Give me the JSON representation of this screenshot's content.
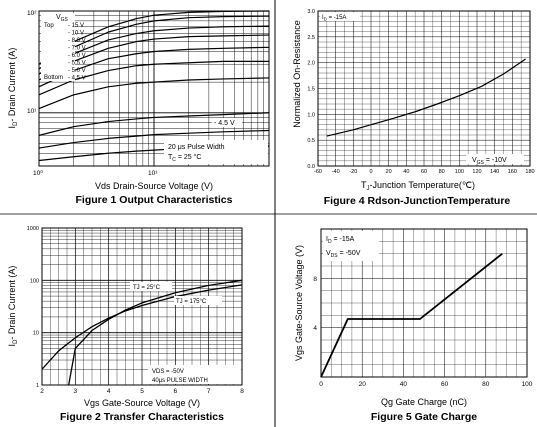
{
  "chart_data": [
    {
      "type": "line",
      "title": "Figure 1 Output Characteristics",
      "xlabel": "Vds Drain-Source Voltage (V)",
      "ylabel": "ID- Drain Current (A)",
      "xscale": "log",
      "yscale": "log",
      "xlim": [
        1,
        100
      ],
      "ylim": [
        3,
        100
      ],
      "grid": true,
      "xticks": [
        "10⁰",
        "10¹"
      ],
      "yticks": [
        "10²",
        "10¹"
      ],
      "legend": {
        "header": "VGS",
        "top_label": "Top",
        "bottom_label": "Bottom",
        "entries": [
          "- 15 V",
          "- 10 V",
          "- 8.0 V",
          "- 7.0 V",
          "- 6.0 V",
          "- 5.5 V",
          "- 5.0 V",
          "- 4.5 V"
        ]
      },
      "annotations": [
        "- 4.5 V",
        "20 μs Pulse Width",
        "TC = 25 °C"
      ],
      "series": [
        {
          "name": "-15 V",
          "x": [
            1,
            2,
            4,
            7,
            10,
            20,
            40,
            100
          ],
          "y": [
            30,
            50,
            70,
            84,
            91,
            97,
            99,
            100
          ]
        },
        {
          "name": "-10 V",
          "x": [
            1,
            2,
            4,
            7,
            10,
            20,
            40,
            100
          ],
          "y": [
            27,
            44,
            62,
            74,
            80,
            86,
            88,
            89
          ]
        },
        {
          "name": "-8.0 V",
          "x": [
            1,
            2,
            4,
            7,
            10,
            20,
            40,
            100
          ],
          "y": [
            24,
            38,
            52,
            60,
            64,
            68,
            70,
            71
          ]
        },
        {
          "name": "-7.0 V",
          "x": [
            1,
            2,
            4,
            7,
            10,
            20,
            40,
            100
          ],
          "y": [
            21,
            32,
            43,
            50,
            53,
            56,
            57,
            58
          ]
        },
        {
          "name": "-6.0 V",
          "x": [
            1,
            2,
            4,
            7,
            10,
            20,
            40,
            100
          ],
          "y": [
            18,
            26,
            34,
            38,
            40,
            42,
            43,
            44
          ]
        },
        {
          "name": "-5.5 V",
          "x": [
            1,
            2,
            4,
            7,
            10,
            20,
            40,
            100
          ],
          "y": [
            15,
            21,
            26,
            29,
            30,
            31,
            32,
            32
          ]
        },
        {
          "name": "-5.0 V",
          "x": [
            1,
            2,
            4,
            7,
            10,
            20,
            40,
            100
          ],
          "y": [
            11,
            15,
            18,
            19.5,
            20,
            21,
            21.5,
            22
          ]
        },
        {
          "name": "-4.5 V",
          "x": [
            1,
            2,
            4,
            7,
            10,
            20,
            40,
            100
          ],
          "y": [
            6,
            7.3,
            8.2,
            8.7,
            9,
            9.3,
            9.6,
            10
          ]
        },
        {
          "name": "",
          "x": [
            1,
            2,
            4,
            7,
            10,
            20,
            40,
            100
          ],
          "y": [
            4.5,
            5.1,
            5.6,
            5.9,
            6.1,
            6.3,
            6.5,
            6.7
          ]
        },
        {
          "name": "",
          "x": [
            1,
            2,
            4,
            7,
            10,
            20,
            40,
            100
          ],
          "y": [
            3.4,
            3.7,
            4.0,
            4.2,
            4.3,
            4.5,
            4.6,
            4.7
          ]
        }
      ]
    },
    {
      "type": "line",
      "title": "Figure 4 Rdson-JunctionTemperature",
      "xlabel": "TJ-Junction Temperature(℃)",
      "ylabel": "Normalized On-Resistance",
      "xlim": [
        -60,
        180
      ],
      "ylim": [
        0,
        3.0
      ],
      "grid": true,
      "xticks": [
        "-60",
        "-40",
        "-20",
        "0",
        "20",
        "40",
        "60",
        "80",
        "100",
        "120",
        "140",
        "160",
        "180"
      ],
      "yticks": [
        "3.0",
        "2.5",
        "2.0",
        "1.5",
        "1.0",
        "0.5",
        "0.0"
      ],
      "annotations": [
        "ID = -15A",
        "VGS = -10V"
      ],
      "series": [
        {
          "name": "",
          "x": [
            -50,
            -20,
            0,
            25,
            50,
            75,
            100,
            125,
            150,
            175
          ],
          "y": [
            0.58,
            0.7,
            0.8,
            0.92,
            1.05,
            1.2,
            1.36,
            1.54,
            1.78,
            2.07
          ]
        }
      ]
    },
    {
      "type": "line",
      "title": "Figure 2 Transfer Characteristics",
      "xlabel": "Vgs Gate-Source Voltage (V)",
      "ylabel": "ID- Drain Current (A)",
      "yscale": "log",
      "xlim": [
        2,
        8
      ],
      "ylim": [
        1,
        1000
      ],
      "grid": true,
      "xticks": [
        "2",
        "3",
        "4",
        "5",
        "6",
        "7",
        "8"
      ],
      "yticks": [
        "1000",
        "100",
        "10",
        "1"
      ],
      "annotations": [
        "TJ = 25°C",
        "TJ = 175°C",
        "VDS = -50V",
        "40μs PULSE WIDTH"
      ],
      "series": [
        {
          "name": "TJ = 25°C",
          "x": [
            2.8,
            3.0,
            3.5,
            4.0,
            4.5,
            5.0,
            6.0,
            7.0,
            8.0
          ],
          "y": [
            1,
            5,
            11,
            18,
            27,
            37,
            58,
            80,
            100
          ]
        },
        {
          "name": "TJ = 175°C",
          "x": [
            2.0,
            2.5,
            3.0,
            3.5,
            4.0,
            4.5,
            5.0,
            6.0,
            7.0,
            8.0
          ],
          "y": [
            2,
            4.5,
            8,
            13,
            19,
            26,
            33,
            49,
            65,
            82
          ]
        }
      ]
    },
    {
      "type": "line",
      "title": "Figure 5 Gate Charge",
      "xlabel": "Qg Gate Charge (nC)",
      "ylabel": "Vgs Gate-Source Voltage (V)",
      "xlim": [
        0,
        100
      ],
      "ylim": [
        0,
        12
      ],
      "grid": true,
      "xticks": [
        "0",
        "20",
        "40",
        "60",
        "80",
        "100"
      ],
      "yticks": [
        "4",
        "8"
      ],
      "annotations": [
        "ID = -15A",
        "VDS = -50V"
      ],
      "series": [
        {
          "name": "",
          "x": [
            0,
            13,
            48,
            88
          ],
          "y": [
            0,
            4.7,
            4.7,
            10
          ]
        }
      ]
    }
  ]
}
